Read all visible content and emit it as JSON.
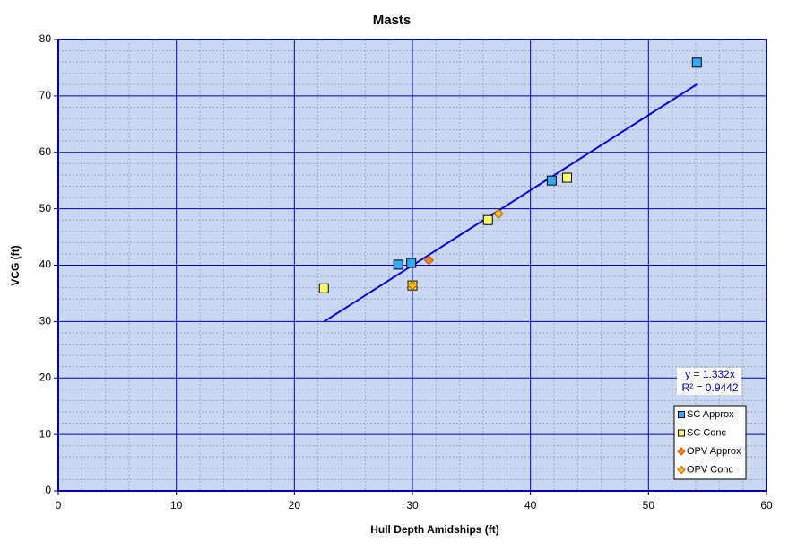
{
  "chart_data": {
    "type": "scatter",
    "title": "Masts",
    "x_label": "Hull Depth Amidships  (ft)",
    "y_label": "VCG (ft)",
    "xlim": [
      0,
      60
    ],
    "xticks": [
      0,
      10,
      20,
      30,
      40,
      50,
      60
    ],
    "ylim": [
      0,
      80
    ],
    "yticks": [
      0,
      10,
      20,
      30,
      40,
      50,
      60,
      70,
      80
    ],
    "grid": true,
    "minor_grid": true,
    "legend_position": "lower right",
    "series": [
      {
        "name": "SC Approx",
        "color": "#33aaff",
        "marker": "square",
        "x": [
          28.8,
          29.9,
          41.8,
          54.1
        ],
        "values": [
          40.1,
          40.4,
          55.0,
          75.9
        ]
      },
      {
        "name": "SC Conc",
        "color": "#ffff66",
        "marker": "square",
        "x": [
          22.5,
          30.0,
          36.4,
          43.1
        ],
        "values": [
          35.9,
          36.4,
          48.0,
          55.5
        ]
      },
      {
        "name": "OPV Approx",
        "color": "#ff7f27",
        "marker": "diamond",
        "x": [
          31.4,
          30.0
        ],
        "values": [
          40.9,
          36.4
        ]
      },
      {
        "name": "OPV Conc",
        "color": "#ffc000",
        "marker": "diamond",
        "x": [
          37.3,
          30.0
        ],
        "values": [
          49.1,
          36.4
        ]
      }
    ],
    "trendline": {
      "slope": 1.332,
      "color": "#0000cc",
      "equation": "y = 1.332x",
      "r_squared": "R² = 0.9442"
    }
  }
}
